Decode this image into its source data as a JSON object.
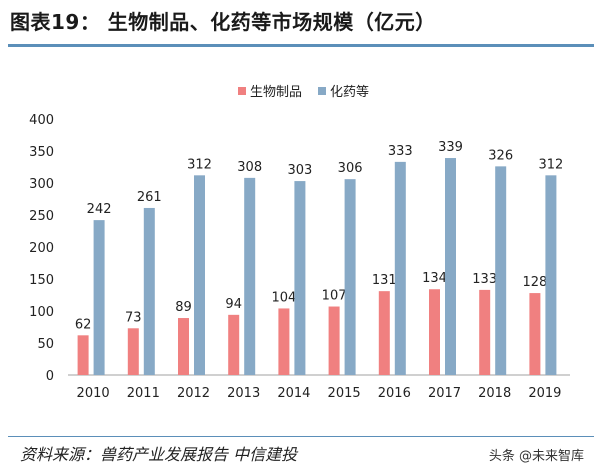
{
  "header": {
    "title": "图表19：  生物制品、化药等市场规模（亿元）"
  },
  "footer": {
    "source": "资料来源：兽药产业发展报告 中信建投",
    "watermark": "头条 @未来智库"
  },
  "colors": {
    "bio": "#f08080",
    "chem": "#87a9c6",
    "rule": "#5b8fb9",
    "axis": "#a0a0a0"
  },
  "chart_data": {
    "type": "bar",
    "categories": [
      "2010",
      "2011",
      "2012",
      "2013",
      "2014",
      "2015",
      "2016",
      "2017",
      "2018",
      "2019"
    ],
    "series": [
      {
        "name": "生物制品",
        "values": [
          62,
          73,
          89,
          94,
          104,
          107,
          131,
          134,
          133,
          128
        ]
      },
      {
        "name": "化药等",
        "values": [
          242,
          261,
          312,
          308,
          303,
          306,
          333,
          339,
          326,
          312
        ]
      }
    ],
    "ylim": [
      0,
      400
    ],
    "yticks": [
      0,
      50,
      100,
      150,
      200,
      250,
      300,
      350,
      400
    ],
    "legend": "top-center",
    "grid": false
  }
}
